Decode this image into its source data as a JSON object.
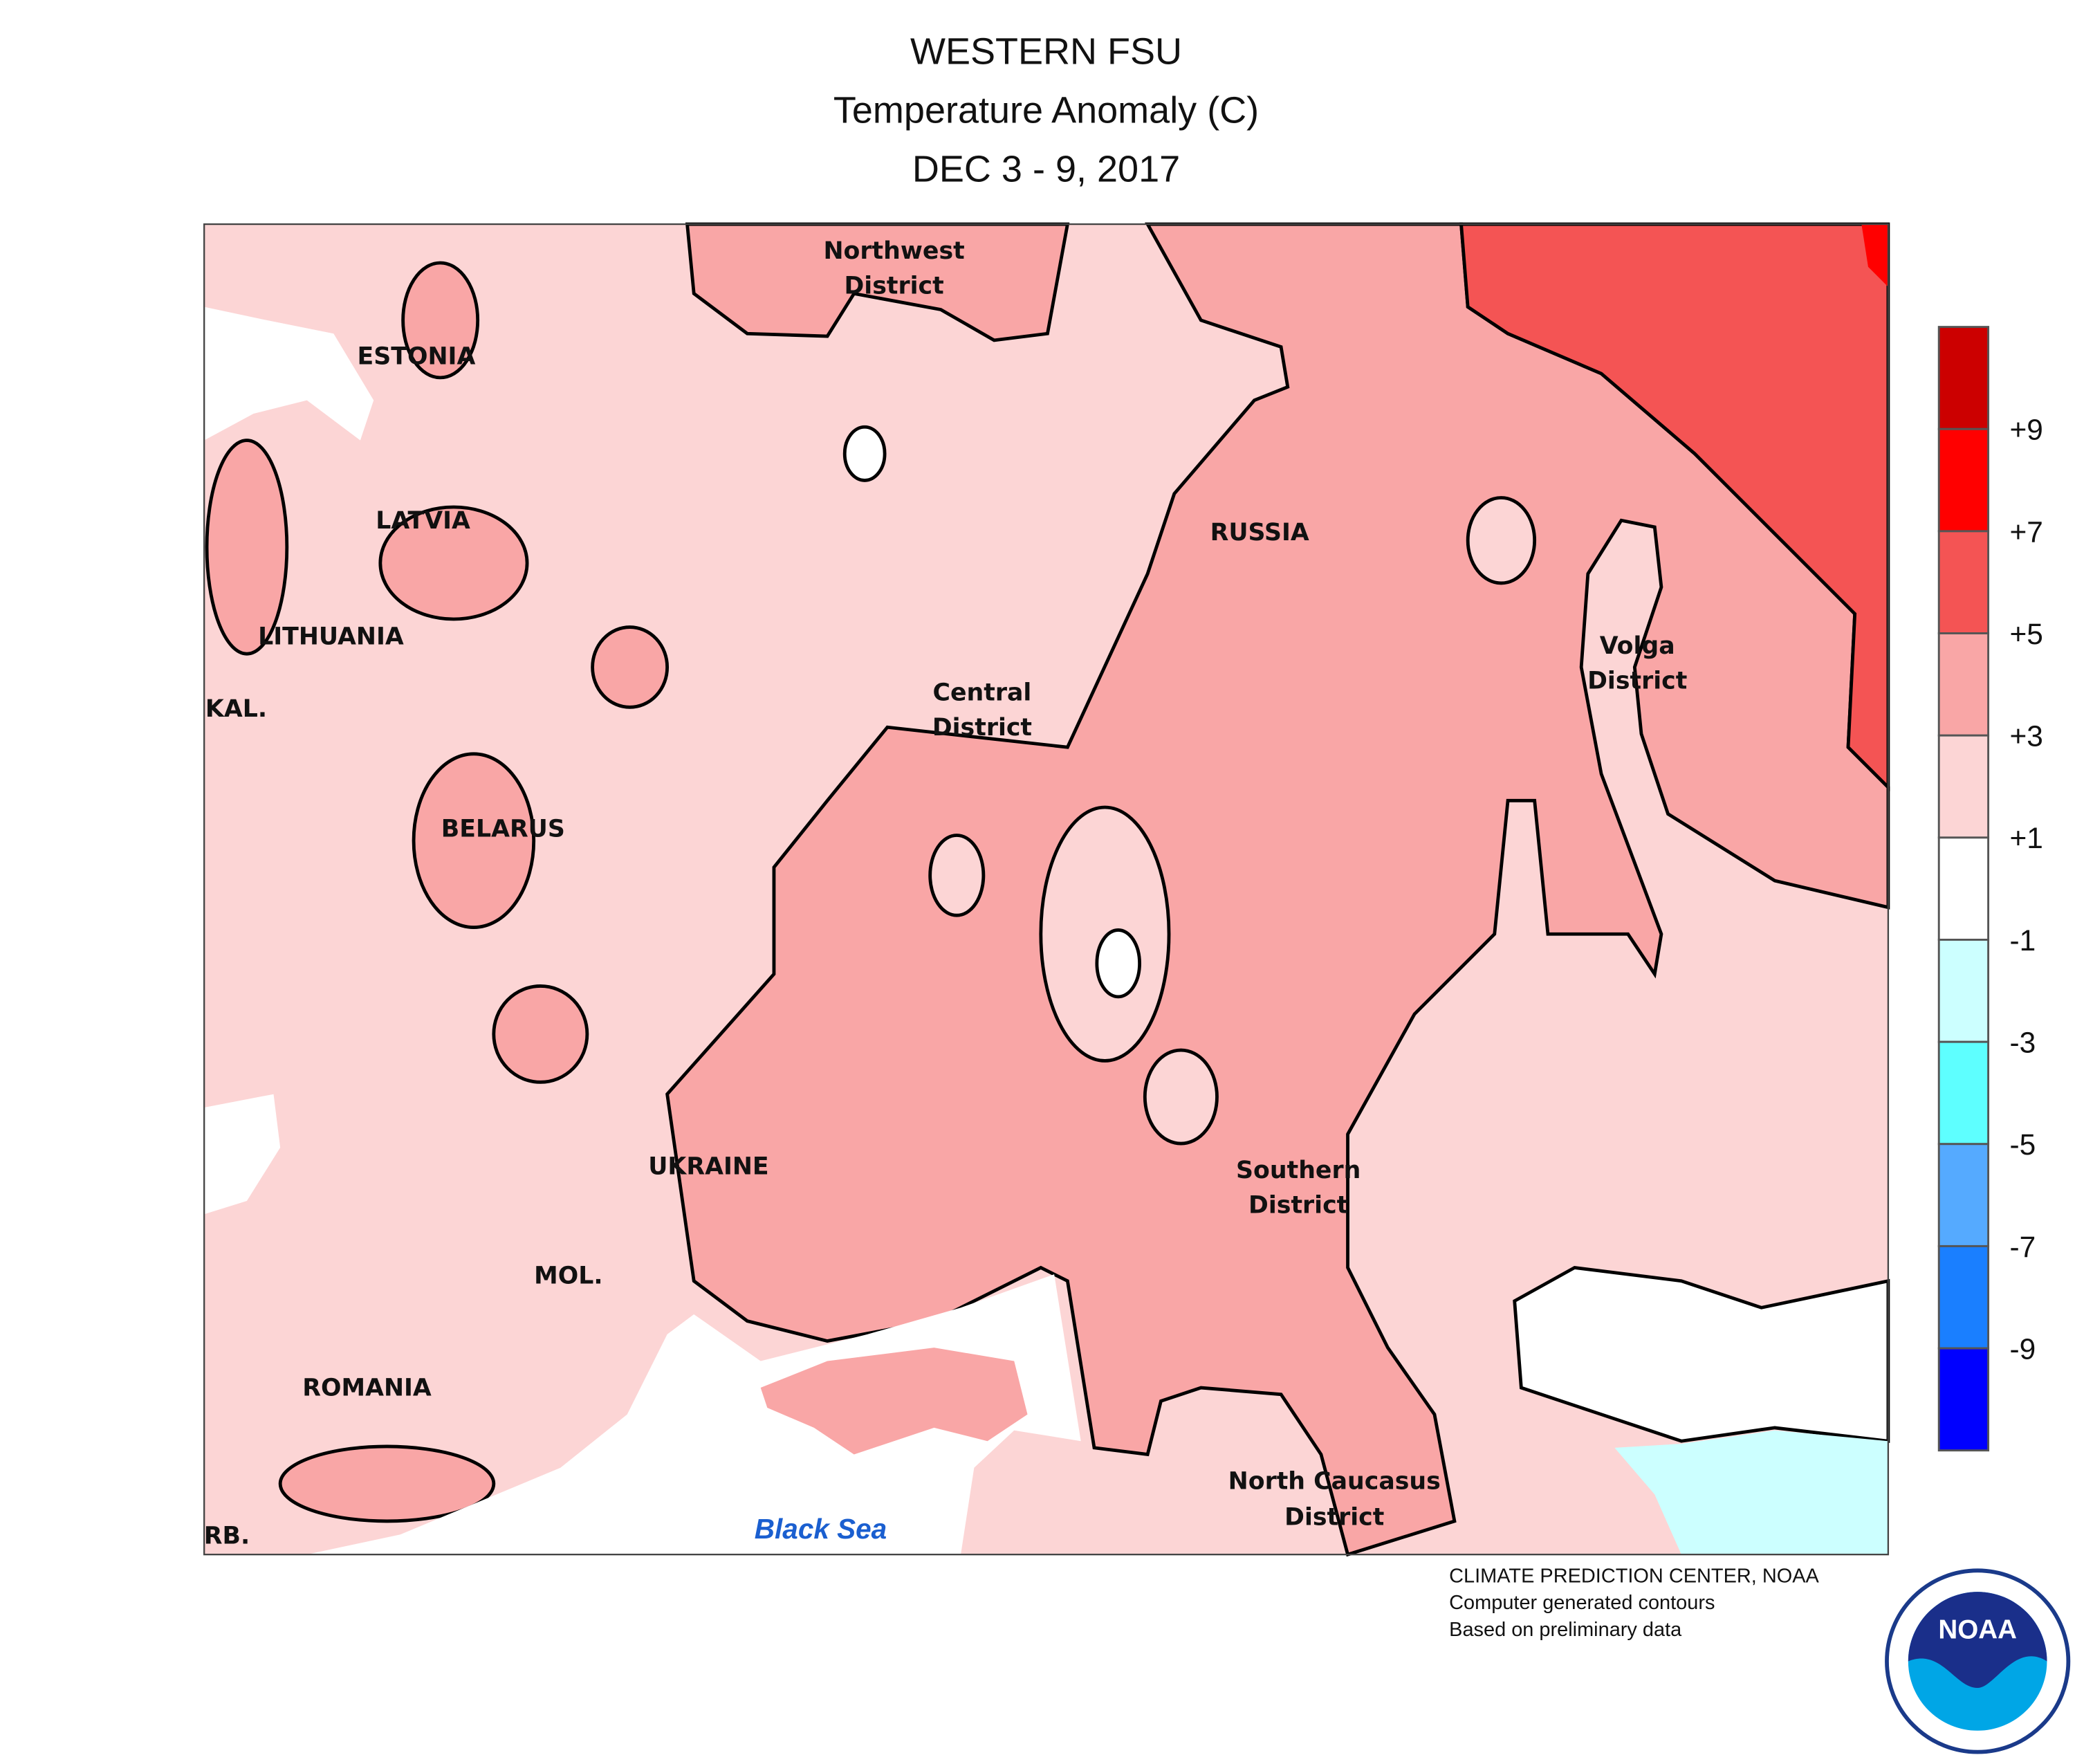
{
  "title": [
    "WESTERN FSU",
    "Temperature Anomaly (C)",
    "DEC 3 - 9, 2017"
  ],
  "map": {
    "labels": [
      [
        "Northwest",
        "District"
      ],
      [
        "ESTONIA"
      ],
      [
        "LATVIA"
      ],
      [
        "LITHUANIA"
      ],
      [
        "KAL."
      ],
      [
        "BELARUS"
      ],
      [
        "RUSSIA"
      ],
      [
        "Central",
        "District"
      ],
      [
        "Volga",
        "District"
      ],
      [
        "UKRAINE"
      ],
      [
        "Southern",
        "District"
      ],
      [
        "MOL."
      ],
      [
        "ROMANIA"
      ],
      [
        "North Caucasus",
        "District"
      ],
      [
        "RB."
      ]
    ],
    "sea": "Black Sea"
  },
  "legend": {
    "labels": [
      "+9",
      "+7",
      "+5",
      "+3",
      "+1",
      "-1",
      "-3",
      "-5",
      "-7",
      "-9"
    ],
    "colors": [
      "#cc0000",
      "#ff0000",
      "#f45454",
      "#f9a6a6",
      "#fcd5d5",
      "#ffffff",
      "#ccffff",
      "#5effff",
      "#55aaff",
      "#1a7fff",
      "#0000ff"
    ]
  },
  "credits": [
    "CLIMATE PREDICTION CENTER, NOAA",
    "Computer generated contours",
    "Based on preliminary data"
  ],
  "logo": "NOAA"
}
